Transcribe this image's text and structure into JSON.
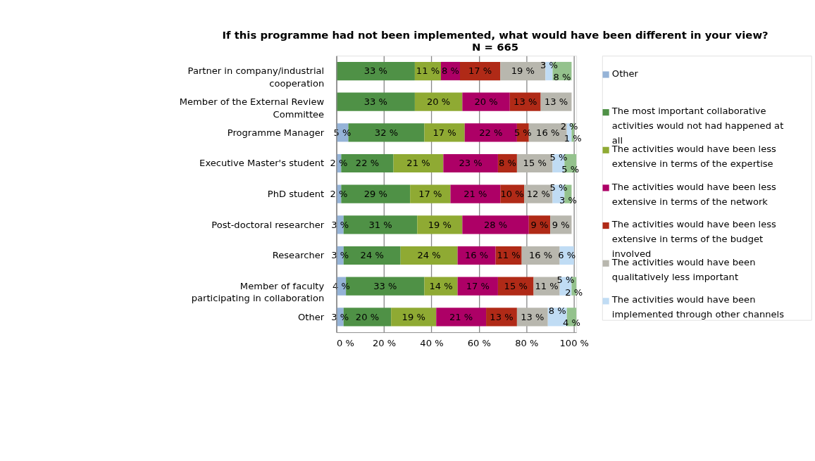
{
  "chart_data": {
    "type": "bar",
    "orientation": "horizontal",
    "stacked": true,
    "title": "If this programme had not been implemented, what would have been different in your view?  N = 665",
    "categories": [
      "Partner in company/industrial cooperation",
      "Member of the External Review Committee",
      "Programme Manager",
      "Executive Master's student",
      "PhD student",
      "Post-doctoral researcher",
      "Researcher",
      "Member of faculty participating in collaboration",
      "Other"
    ],
    "series": [
      {
        "name": "Other",
        "color": "#95b3d7",
        "values": [
          null,
          null,
          5,
          2,
          2,
          3,
          3,
          4,
          3
        ],
        "value_labels": [
          null,
          null,
          "5 %",
          "2 %",
          "2 %",
          "3 %",
          "3 %",
          "4 %",
          "3 %"
        ]
      },
      {
        "name": "The most important collaborative activities would not had happened at all",
        "color": "#4f9146",
        "values": [
          33,
          33,
          32,
          22,
          29,
          31,
          24,
          33,
          20
        ],
        "value_labels": [
          "33 %",
          "33 %",
          "32 %",
          "22 %",
          "29 %",
          "31 %",
          "24 %",
          "33 %",
          "20 %"
        ]
      },
      {
        "name": "The activities would have been less extensive in terms of the expertise",
        "color": "#8faa33",
        "values": [
          11,
          20,
          17,
          21,
          17,
          19,
          24,
          14,
          19
        ],
        "value_labels": [
          "11 %",
          "20 %",
          "17 %",
          "21 %",
          "17 %",
          "19 %",
          "24 %",
          "14 %",
          "19 %"
        ]
      },
      {
        "name": "The activities would have been less extensive in terms of the network",
        "color": "#ad0066",
        "values": [
          8,
          20,
          22,
          23,
          21,
          28,
          16,
          17,
          21
        ],
        "value_labels": [
          "8 %",
          "20 %",
          "22 %",
          "23 %",
          "21 %",
          "28 %",
          "16 %",
          "17 %",
          "21 %"
        ]
      },
      {
        "name": "The activities would have been less extensive in terms of the budget involved",
        "color": "#b02a17",
        "values": [
          17,
          13,
          5,
          8,
          10,
          9,
          11,
          15,
          13
        ],
        "value_labels": [
          "17 %",
          "13 %",
          "5 %",
          "8 %",
          "10 %",
          "9 %",
          "11 %",
          "15 %",
          "13 %"
        ]
      },
      {
        "name": "The activities would have been qualitatively less important",
        "color": "#b8b7ae",
        "values": [
          19,
          13,
          16,
          15,
          12,
          9,
          16,
          11,
          13
        ],
        "value_labels": [
          "19 %",
          "13 %",
          "16 %",
          "15 %",
          "12 %",
          "9 %",
          "16 %",
          "11 %",
          "13 %"
        ]
      },
      {
        "name": "The activities would have been implemented through other channels",
        "color": "#c0dcf4",
        "values": [
          3,
          null,
          2,
          5,
          5,
          null,
          6,
          5,
          8
        ],
        "value_labels": [
          "3 %",
          null,
          "2 %",
          "5 %",
          "5 %",
          null,
          "6 %",
          "5 %",
          "8 %"
        ]
      },
      {
        "color": "#94c28d",
        "values": [
          8,
          null,
          1,
          5,
          3,
          null,
          null,
          2,
          4
        ],
        "value_labels": [
          "8 %",
          null,
          "1 %",
          "5 %",
          "3 %",
          null,
          null,
          "2 %",
          "4 %"
        ]
      }
    ],
    "xlim": [
      0,
      101
    ],
    "xticks": [
      {
        "value": 0,
        "label": "0 %"
      },
      {
        "value": 20,
        "label": "20 %"
      },
      {
        "value": 40,
        "label": "40 %"
      },
      {
        "value": 60,
        "label": "60 %"
      },
      {
        "value": 80,
        "label": "80 %"
      },
      {
        "value": 100,
        "label": "100 %"
      }
    ],
    "grid": "x",
    "legend": "right"
  }
}
